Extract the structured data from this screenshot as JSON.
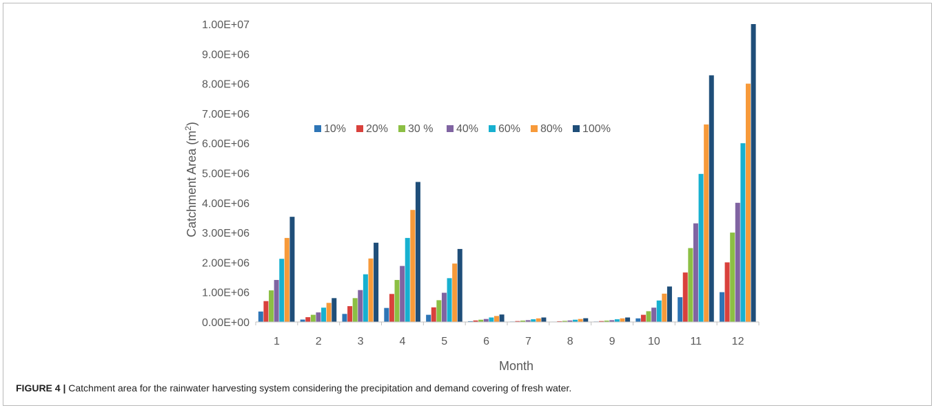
{
  "caption": {
    "label": "FIGURE 4 |",
    "text": "Catchment area for the rainwater harvesting system considering the precipitation and demand covering of fresh water."
  },
  "chart_data": {
    "type": "bar",
    "xlabel": "Month",
    "ylabel": "Catchment Area (m²)",
    "ylabel_base": "Catchment Area (m",
    "ylabel_sup": "2",
    "ylabel_tail": ")",
    "ylim": [
      0,
      10000000
    ],
    "yticks": [
      0,
      1000000,
      2000000,
      3000000,
      4000000,
      5000000,
      6000000,
      7000000,
      8000000,
      9000000,
      10000000
    ],
    "ytick_labels": [
      "0.00E+00",
      "1.00E+06",
      "2.00E+06",
      "3.00E+06",
      "4.00E+06",
      "5.00E+06",
      "6.00E+06",
      "7.00E+06",
      "8.00E+06",
      "9.00E+06",
      "1.00E+07"
    ],
    "grid": false,
    "legend_position": "inside-top-left",
    "categories": [
      "1",
      "2",
      "3",
      "4",
      "5",
      "6",
      "7",
      "8",
      "9",
      "10",
      "11",
      "12"
    ],
    "series": [
      {
        "name": "10%",
        "color": "#2e75b6",
        "values": [
          350000,
          80000,
          270000,
          470000,
          240000,
          25000,
          15000,
          12000,
          15000,
          120000,
          830000,
          1000000
        ]
      },
      {
        "name": "20%",
        "color": "#d9413c",
        "values": [
          700000,
          160000,
          530000,
          940000,
          490000,
          50000,
          30000,
          25000,
          30000,
          240000,
          1660000,
          2000000
        ]
      },
      {
        "name": "30 %",
        "color": "#8cbf44",
        "values": [
          1060000,
          240000,
          800000,
          1410000,
          730000,
          75000,
          45000,
          37000,
          45000,
          360000,
          2480000,
          3000000
        ]
      },
      {
        "name": "40%",
        "color": "#8064a2",
        "values": [
          1410000,
          320000,
          1070000,
          1880000,
          980000,
          100000,
          60000,
          50000,
          60000,
          480000,
          3310000,
          4000000
        ]
      },
      {
        "name": "60%",
        "color": "#17b0d0",
        "values": [
          2120000,
          480000,
          1600000,
          2820000,
          1470000,
          150000,
          90000,
          75000,
          90000,
          720000,
          4970000,
          6000000
        ]
      },
      {
        "name": "80%",
        "color": "#f79a3a",
        "values": [
          2820000,
          640000,
          2130000,
          3760000,
          1960000,
          200000,
          120000,
          100000,
          120000,
          950000,
          6630000,
          8000000
        ]
      },
      {
        "name": "100%",
        "color": "#1f4e79",
        "values": [
          3530000,
          800000,
          2660000,
          4700000,
          2450000,
          250000,
          150000,
          125000,
          150000,
          1190000,
          8280000,
          10000000
        ]
      }
    ]
  }
}
